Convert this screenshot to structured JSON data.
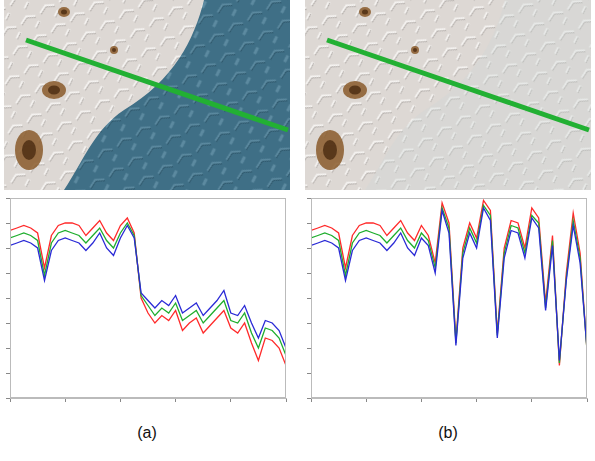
{
  "panel_labels": [
    "(a)",
    "(b)"
  ],
  "chart_data": [
    {
      "type": "line",
      "grid": false,
      "tick_labels": false,
      "x": [
        0,
        2.5,
        5,
        7.5,
        10,
        12.5,
        15,
        17.5,
        20,
        22.5,
        25,
        27.5,
        30,
        32.5,
        35,
        37.5,
        40,
        42.5,
        45,
        47.5,
        50,
        52.5,
        55,
        57.5,
        60,
        62.5,
        65,
        67.5,
        70,
        72.5,
        75,
        77.5,
        80,
        82.5,
        85,
        87.5,
        90,
        92.5,
        95,
        97.5,
        100
      ],
      "xlim": [
        0,
        100
      ],
      "xticks": [
        0,
        20,
        40,
        60,
        80,
        100
      ],
      "ylim": [
        0,
        8
      ],
      "yticks": [
        0,
        1,
        2,
        3,
        4,
        5,
        6,
        7,
        8
      ],
      "series": [
        {
          "color": "#ff2a2a",
          "values": [
            6.7,
            6.8,
            6.9,
            6.8,
            6.6,
            5.2,
            6.5,
            6.9,
            7.0,
            7.0,
            6.9,
            6.5,
            6.8,
            7.1,
            6.6,
            6.3,
            6.9,
            7.2,
            6.6,
            4.0,
            3.4,
            3.0,
            3.3,
            3.1,
            3.5,
            2.7,
            3.0,
            3.2,
            2.6,
            2.9,
            3.2,
            3.5,
            2.8,
            2.6,
            3.0,
            2.2,
            1.5,
            2.4,
            2.3,
            2.0,
            1.3
          ]
        },
        {
          "color": "#1fae2e",
          "values": [
            6.4,
            6.5,
            6.6,
            6.5,
            6.3,
            4.9,
            6.2,
            6.6,
            6.7,
            6.6,
            6.5,
            6.2,
            6.5,
            6.8,
            6.3,
            6.0,
            6.6,
            7.0,
            6.5,
            4.1,
            3.7,
            3.3,
            3.6,
            3.4,
            3.8,
            3.1,
            3.3,
            3.5,
            3.0,
            3.3,
            3.6,
            3.9,
            3.1,
            3.0,
            3.4,
            2.6,
            2.0,
            2.8,
            2.7,
            2.4,
            1.7
          ]
        },
        {
          "color": "#2a2ad6",
          "values": [
            6.1,
            6.2,
            6.3,
            6.2,
            6.0,
            4.7,
            5.9,
            6.3,
            6.4,
            6.3,
            6.2,
            5.9,
            6.2,
            6.6,
            6.0,
            5.7,
            6.4,
            6.9,
            6.4,
            4.2,
            3.9,
            3.6,
            3.9,
            3.7,
            4.1,
            3.4,
            3.6,
            3.8,
            3.3,
            3.6,
            3.9,
            4.3,
            3.4,
            3.3,
            3.7,
            3.0,
            2.4,
            3.1,
            3.0,
            2.7,
            2.0
          ]
        }
      ]
    },
    {
      "type": "line",
      "grid": false,
      "tick_labels": false,
      "x": [
        0,
        2.5,
        5,
        7.5,
        10,
        12.5,
        15,
        17.5,
        20,
        22.5,
        25,
        27.5,
        30,
        32.5,
        35,
        37.5,
        40,
        42.5,
        45,
        47.5,
        50,
        52.5,
        55,
        57.5,
        60,
        62.5,
        65,
        67.5,
        70,
        72.5,
        75,
        77.5,
        80,
        82.5,
        85,
        87.5,
        90,
        92.5,
        95,
        97.5,
        100
      ],
      "xlim": [
        0,
        100
      ],
      "xticks": [
        0,
        20,
        40,
        60,
        80,
        100
      ],
      "ylim": [
        0,
        8
      ],
      "yticks": [
        0,
        1,
        2,
        3,
        4,
        5,
        6,
        7,
        8
      ],
      "series": [
        {
          "color": "#ff2a2a",
          "values": [
            6.7,
            6.8,
            6.9,
            6.8,
            6.6,
            5.2,
            6.5,
            6.9,
            7.0,
            7.0,
            6.9,
            6.5,
            6.8,
            7.1,
            6.6,
            6.3,
            6.9,
            6.5,
            5.4,
            7.8,
            7.0,
            2.3,
            6.0,
            7.0,
            6.4,
            7.9,
            7.5,
            2.6,
            6.0,
            7.1,
            7.0,
            6.0,
            7.6,
            7.2,
            3.8,
            6.5,
            1.3,
            5.0,
            7.4,
            5.8,
            1.9
          ]
        },
        {
          "color": "#1fae2e",
          "values": [
            6.4,
            6.5,
            6.6,
            6.5,
            6.3,
            4.9,
            6.2,
            6.6,
            6.7,
            6.6,
            6.5,
            6.2,
            6.5,
            6.8,
            6.3,
            6.0,
            6.6,
            6.3,
            5.2,
            7.6,
            6.8,
            2.2,
            5.8,
            6.8,
            6.2,
            7.7,
            7.3,
            2.5,
            5.8,
            6.9,
            6.8,
            5.8,
            7.3,
            7.0,
            3.6,
            6.3,
            1.4,
            4.8,
            7.1,
            5.6,
            1.9
          ]
        },
        {
          "color": "#2a2ad6",
          "values": [
            6.1,
            6.2,
            6.3,
            6.2,
            6.0,
            4.7,
            5.9,
            6.3,
            6.4,
            6.3,
            6.2,
            5.9,
            6.2,
            6.6,
            6.0,
            5.7,
            6.4,
            6.1,
            5.0,
            7.5,
            6.6,
            2.1,
            5.6,
            6.6,
            6.0,
            7.6,
            7.1,
            2.4,
            5.6,
            6.7,
            6.6,
            5.6,
            7.2,
            6.8,
            3.5,
            6.1,
            1.5,
            4.7,
            6.9,
            5.4,
            2.0
          ]
        }
      ]
    }
  ]
}
